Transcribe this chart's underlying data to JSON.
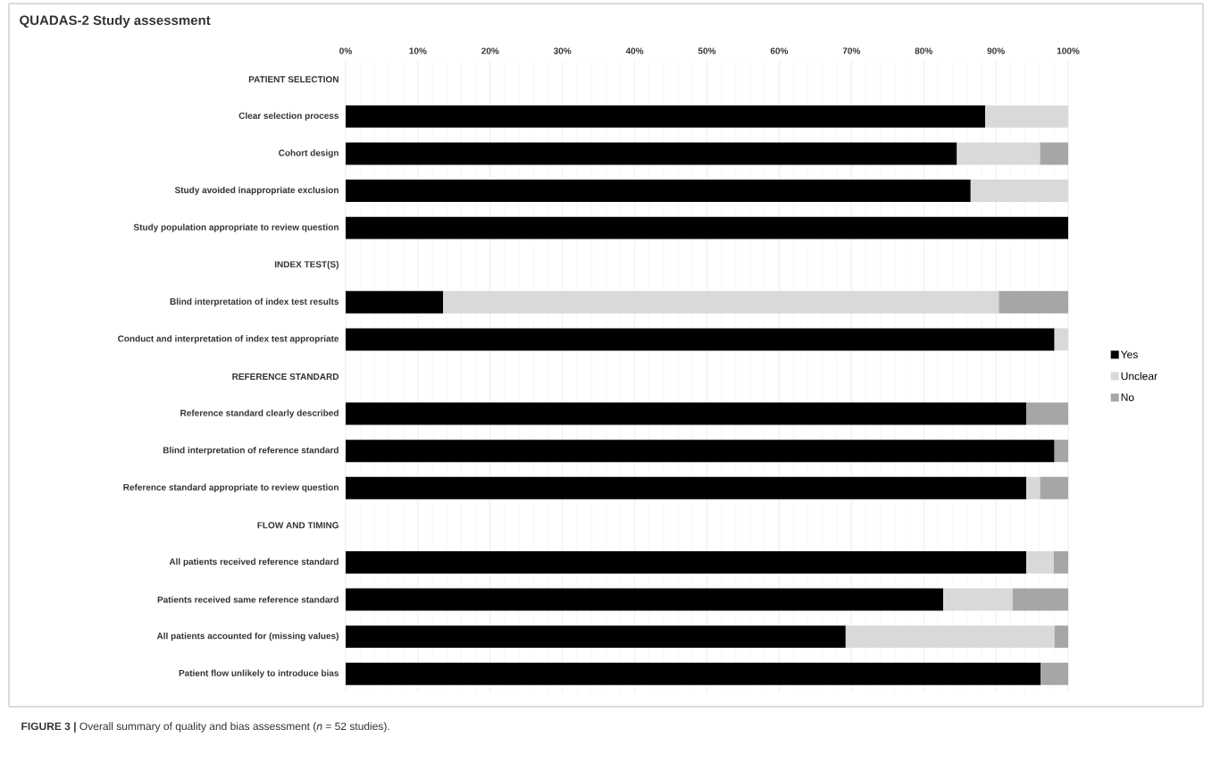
{
  "chart_data": {
    "type": "bar",
    "orientation": "horizontal",
    "stacked": true,
    "title": "QUADAS-2 Study assessment",
    "categories": [
      "PATIENT SELECTION",
      "Clear selection process",
      "Cohort design",
      "Study avoided inappropriate exclusion",
      "Study population appropriate to review question",
      "INDEX TEST(S)",
      "Blind interpretation of index test results",
      "Conduct and interpretation of index test appropriate",
      "REFERENCE STANDARD",
      "Reference standard clearly described",
      "Blind interpretation of reference standard",
      "Reference standard appropriate to review question",
      "FLOW AND TIMING",
      "All patients received reference standard",
      "Patients received same reference standard",
      "All patients accounted for (missing values)",
      "Patient flow unlikely to introduce bias"
    ],
    "series": [
      {
        "name": "Yes",
        "color": "#000000",
        "values": [
          null,
          88.5,
          84.6,
          86.5,
          100,
          null,
          13.5,
          98.1,
          null,
          94.2,
          98.1,
          94.2,
          null,
          94.2,
          82.7,
          69.2,
          96.2
        ]
      },
      {
        "name": "Unclear",
        "color": "#d9d9d9",
        "values": [
          null,
          11.5,
          11.5,
          13.5,
          0,
          null,
          76.9,
          1.9,
          null,
          0,
          0,
          1.9,
          null,
          3.8,
          9.6,
          28.9,
          0
        ]
      },
      {
        "name": "No",
        "color": "#a6a6a6",
        "values": [
          null,
          0,
          3.9,
          0,
          0,
          null,
          9.6,
          0,
          null,
          5.8,
          1.9,
          3.9,
          null,
          2.0,
          7.7,
          1.9,
          3.8
        ]
      }
    ],
    "xlim": [
      0,
      100
    ],
    "xticks": [
      {
        "value": 0,
        "label": "0%"
      },
      {
        "value": 10,
        "label": "10%"
      },
      {
        "value": 20,
        "label": "20%"
      },
      {
        "value": 30,
        "label": "30%"
      },
      {
        "value": 40,
        "label": "40%"
      },
      {
        "value": 50,
        "label": "50%"
      },
      {
        "value": 60,
        "label": "60%"
      },
      {
        "value": 70,
        "label": "70%"
      },
      {
        "value": 80,
        "label": "80%"
      },
      {
        "value": 90,
        "label": "90%"
      },
      {
        "value": 100,
        "label": "100%"
      }
    ],
    "grid": "x",
    "legend": "right",
    "annotations": [
      "**FIGURE 3 |** Overall summary of quality and bias assessment (*n* = 52 studies)."
    ]
  }
}
